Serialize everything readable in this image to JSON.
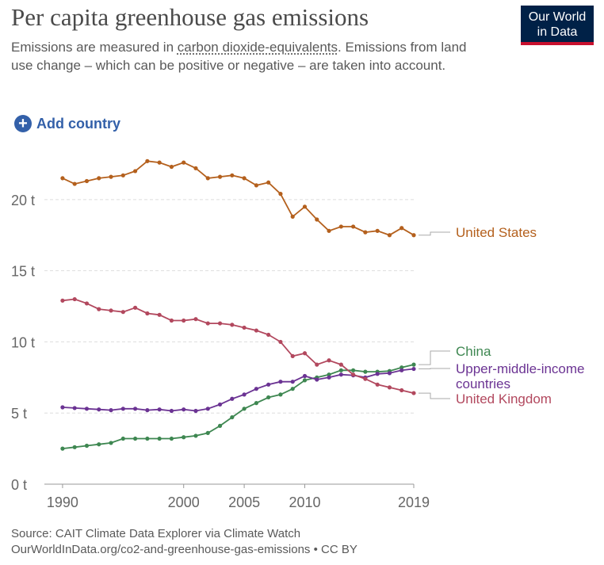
{
  "header": {
    "title": "Per capita greenhouse gas emissions",
    "subtitle_pre": "Emissions are measured in ",
    "subtitle_link": "carbon dioxide-equivalents",
    "subtitle_post": ". Emissions from land use change – which can be positive or negative – are taken into account.",
    "logo_line1": "Our World",
    "logo_line2": "in Data"
  },
  "controls": {
    "add_country": "Add country"
  },
  "footer": {
    "source": "Source: CAIT Climate Data Explorer via Climate Watch",
    "url_line": "OurWorldInData.org/co2-and-greenhouse-gas-emissions • CC BY"
  },
  "chart_data": {
    "type": "line",
    "title": "Per capita greenhouse gas emissions",
    "xlabel": "",
    "ylabel": "",
    "xlim": [
      1990,
      2019
    ],
    "ylim": [
      0,
      24
    ],
    "yticks": [
      0,
      5,
      10,
      15,
      20
    ],
    "ytick_labels": [
      "0 t",
      "5 t",
      "10 t",
      "15 t",
      "20 t"
    ],
    "xticks": [
      1990,
      2000,
      2005,
      2010,
      2019
    ],
    "xtick_labels": [
      "1990",
      "2000",
      "2005",
      "2010",
      "2019"
    ],
    "grid": true,
    "x": [
      1990,
      1991,
      1992,
      1993,
      1994,
      1995,
      1996,
      1997,
      1998,
      1999,
      2000,
      2001,
      2002,
      2003,
      2004,
      2005,
      2006,
      2007,
      2008,
      2009,
      2010,
      2011,
      2012,
      2013,
      2014,
      2015,
      2016,
      2017,
      2018,
      2019
    ],
    "series": [
      {
        "name": "United States",
        "label_lines": [
          "United States"
        ],
        "color": "#b4601d",
        "values": [
          21.5,
          21.1,
          21.3,
          21.5,
          21.6,
          21.7,
          22.0,
          22.7,
          22.6,
          22.3,
          22.6,
          22.2,
          21.5,
          21.6,
          21.7,
          21.5,
          21.0,
          21.2,
          20.4,
          18.8,
          19.5,
          18.6,
          17.8,
          18.1,
          18.1,
          17.7,
          17.8,
          17.5,
          18.0,
          17.5
        ]
      },
      {
        "name": "China",
        "label_lines": [
          "China"
        ],
        "color": "#3e8751",
        "values": [
          2.5,
          2.6,
          2.7,
          2.8,
          2.9,
          3.2,
          3.2,
          3.2,
          3.2,
          3.2,
          3.3,
          3.4,
          3.6,
          4.1,
          4.7,
          5.3,
          5.7,
          6.1,
          6.3,
          6.7,
          7.3,
          7.5,
          7.7,
          8.0,
          8.0,
          7.9,
          7.9,
          7.95,
          8.2,
          8.4
        ]
      },
      {
        "name": "Upper-middle-income countries",
        "label_lines": [
          "Upper-middle-income",
          "countries"
        ],
        "color": "#6b3393",
        "values": [
          5.4,
          5.35,
          5.3,
          5.25,
          5.2,
          5.3,
          5.3,
          5.2,
          5.25,
          5.15,
          5.25,
          5.15,
          5.3,
          5.6,
          6.0,
          6.3,
          6.7,
          7.0,
          7.2,
          7.2,
          7.6,
          7.35,
          7.5,
          7.7,
          7.65,
          7.5,
          7.75,
          7.8,
          8.0,
          8.1
        ]
      },
      {
        "name": "United Kingdom",
        "label_lines": [
          "United Kingdom"
        ],
        "color": "#b2485e",
        "values": [
          12.9,
          13.0,
          12.7,
          12.3,
          12.2,
          12.1,
          12.4,
          12.0,
          11.9,
          11.5,
          11.5,
          11.6,
          11.3,
          11.3,
          11.2,
          11.0,
          10.8,
          10.5,
          10.0,
          9.0,
          9.2,
          8.4,
          8.7,
          8.4,
          7.7,
          7.4,
          7.0,
          6.8,
          6.6,
          6.4
        ]
      }
    ]
  }
}
